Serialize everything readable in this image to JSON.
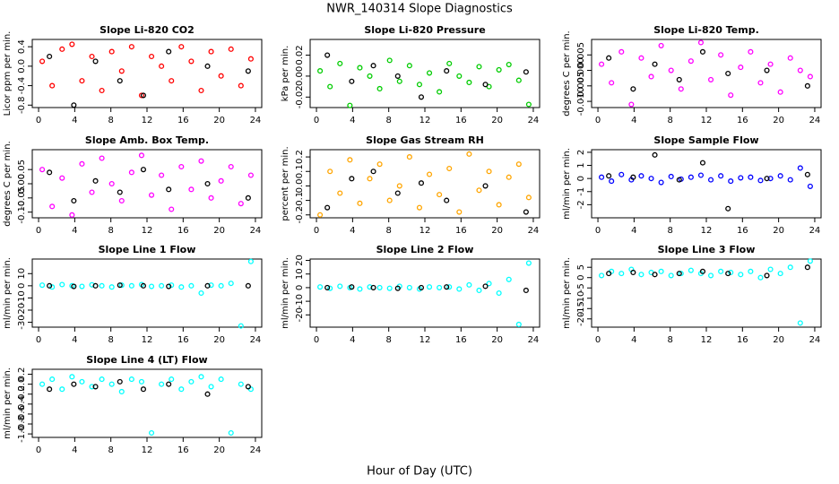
{
  "title": "NWR_140314  Slope Diagnostics",
  "x_label": "Hour of Day (UTC)",
  "chart_data": [
    {
      "type": "scatter",
      "title": "Slope Li-820 CO2",
      "y_label": "Licor ppm per min.",
      "xlim": [
        -0.7,
        24.7
      ],
      "xticks": [
        0,
        4,
        8,
        12,
        16,
        20,
        24
      ],
      "ylim": [
        -0.85,
        0.55
      ],
      "yticks": [
        -0.8,
        -0.4,
        {
          "value": 0,
          "label": "0.0"
        },
        0.4
      ],
      "series": [
        {
          "color": "#ff0000",
          "x": [
            0.4,
            1.5,
            2.6,
            3.7,
            4.8,
            5.9,
            7.0,
            8.1,
            9.2,
            10.3,
            11.4,
            12.5,
            13.6,
            14.7,
            15.8,
            16.9,
            18.0,
            19.1,
            20.2,
            21.3,
            22.4,
            23.5
          ],
          "values": [
            0.1,
            -0.4,
            0.35,
            0.45,
            -0.3,
            0.2,
            -0.5,
            0.3,
            -0.1,
            0.4,
            -0.6,
            0.2,
            0,
            -0.3,
            0.4,
            0.1,
            -0.5,
            0.3,
            -0.2,
            0.35,
            -0.4,
            0.15
          ]
        },
        {
          "color": "#000000",
          "x": [
            1.2,
            3.9,
            6.3,
            9.0,
            11.6,
            14.4,
            18.7,
            23.2
          ],
          "values": [
            0.2,
            -0.8,
            0.1,
            -0.3,
            -0.6,
            0.3,
            0,
            -0.1
          ]
        }
      ]
    },
    {
      "type": "scatter",
      "title": "Slope Li-820 Pressure",
      "y_label": "kPa per min.",
      "xlim": [
        -0.7,
        24.7
      ],
      "xticks": [
        0,
        4,
        8,
        12,
        16,
        20,
        24
      ],
      "ylim": [
        -0.03,
        0.035
      ],
      "yticks": [
        -0.02,
        {
          "value": 0,
          "label": "0.00"
        },
        0.02
      ],
      "series": [
        {
          "color": "#00cc00",
          "x": [
            0.4,
            1.5,
            2.6,
            3.7,
            4.8,
            5.9,
            7.0,
            8.1,
            9.2,
            10.3,
            11.4,
            12.5,
            13.6,
            14.7,
            15.8,
            16.9,
            18.0,
            19.1,
            20.2,
            21.3,
            22.4,
            23.5
          ],
          "values": [
            0.005,
            -0.01,
            0.012,
            -0.028,
            0.008,
            0,
            -0.012,
            0.015,
            -0.005,
            0.01,
            -0.008,
            0.003,
            -0.015,
            0.012,
            0,
            -0.006,
            0.009,
            -0.01,
            0.006,
            0.011,
            -0.004,
            -0.027
          ]
        },
        {
          "color": "#000000",
          "x": [
            1.2,
            3.9,
            6.3,
            9.0,
            11.6,
            14.4,
            18.7,
            23.2
          ],
          "values": [
            0.02,
            -0.005,
            0.01,
            0,
            -0.02,
            0.005,
            -0.008,
            0.004
          ]
        }
      ]
    },
    {
      "type": "scatter",
      "title": "Slope Li-820 Temp.",
      "y_label": "degrees C per min.",
      "xlim": [
        -0.7,
        24.7
      ],
      "xticks": [
        0,
        4,
        8,
        12,
        16,
        20,
        24
      ],
      "ylim": [
        -0.012,
        0.01
      ],
      "yticks": [
        {
          "value": -0.01,
          "label": "-0.010"
        },
        -0.005,
        {
          "value": 0,
          "label": "0.000"
        },
        0.005
      ],
      "series": [
        {
          "color": "#ff00ff",
          "x": [
            0.4,
            1.5,
            2.6,
            3.7,
            4.8,
            5.9,
            7.0,
            8.1,
            9.2,
            10.3,
            11.4,
            12.5,
            13.6,
            14.7,
            15.8,
            16.9,
            18.0,
            19.1,
            20.2,
            21.3,
            22.4,
            23.5
          ],
          "values": [
            0.002,
            -0.004,
            0.006,
            -0.011,
            0.004,
            -0.002,
            0.008,
            0,
            -0.006,
            0.003,
            0.009,
            -0.003,
            0.005,
            -0.008,
            0.001,
            0.006,
            -0.004,
            0.002,
            -0.007,
            0.004,
            0,
            -0.002
          ]
        },
        {
          "color": "#000000",
          "x": [
            1.2,
            3.9,
            6.3,
            9.0,
            11.6,
            14.4,
            18.7,
            23.2
          ],
          "values": [
            0.004,
            -0.006,
            0.002,
            -0.003,
            0.006,
            -0.001,
            0,
            -0.005
          ]
        }
      ]
    },
    {
      "type": "scatter",
      "title": "Slope Amb. Box Temp.",
      "y_label": "degrees C per min.",
      "xlim": [
        -0.7,
        24.7
      ],
      "xticks": [
        0,
        4,
        8,
        12,
        16,
        20,
        24
      ],
      "ylim": [
        -0.12,
        0.12
      ],
      "yticks": [
        {
          "value": -0.1,
          "label": "-0.10"
        },
        -0.05,
        {
          "value": 0,
          "label": "0.00"
        },
        0.05
      ],
      "series": [
        {
          "color": "#ff00ff",
          "x": [
            0.4,
            1.5,
            2.6,
            3.7,
            4.8,
            5.9,
            7.0,
            8.1,
            9.2,
            10.3,
            11.4,
            12.5,
            13.6,
            14.7,
            15.8,
            16.9,
            18.0,
            19.1,
            20.2,
            21.3,
            22.4,
            23.5
          ],
          "values": [
            0.05,
            -0.08,
            0.02,
            -0.11,
            0.07,
            -0.03,
            0.09,
            0,
            -0.06,
            0.04,
            0.1,
            -0.04,
            0.03,
            -0.09,
            0.06,
            -0.02,
            0.08,
            -0.05,
            0.01,
            0.06,
            -0.07,
            0.03
          ]
        },
        {
          "color": "#000000",
          "x": [
            1.2,
            3.9,
            6.3,
            9.0,
            11.6,
            14.4,
            18.7,
            23.2
          ],
          "values": [
            0.04,
            -0.06,
            0.01,
            -0.03,
            0.05,
            -0.02,
            0,
            -0.05
          ]
        }
      ]
    },
    {
      "type": "scatter",
      "title": "Slope Gas Stream RH",
      "y_label": "percent per min.",
      "xlim": [
        -0.7,
        24.7
      ],
      "xticks": [
        0,
        4,
        8,
        12,
        16,
        20,
        24
      ],
      "ylim": [
        -0.22,
        0.25
      ],
      "yticks": [
        -0.2,
        -0.1,
        {
          "value": 0,
          "label": "0.0"
        },
        0.1,
        0.2
      ],
      "series": [
        {
          "color": "#ffa500",
          "x": [
            0.4,
            1.5,
            2.6,
            3.7,
            4.8,
            5.9,
            7.0,
            8.1,
            9.2,
            10.3,
            11.4,
            12.5,
            13.6,
            14.7,
            15.8,
            16.9,
            18.0,
            19.1,
            20.2,
            21.3,
            22.4,
            23.5
          ],
          "values": [
            -0.2,
            0.1,
            -0.05,
            0.18,
            -0.12,
            0.05,
            0.15,
            -0.1,
            0,
            0.2,
            -0.15,
            0.08,
            -0.06,
            0.12,
            -0.18,
            0.22,
            -0.03,
            0.1,
            -0.13,
            0.06,
            0.15,
            -0.08
          ]
        },
        {
          "color": "#000000",
          "x": [
            1.2,
            3.9,
            6.3,
            9.0,
            11.6,
            14.4,
            18.7,
            23.2
          ],
          "values": [
            -0.15,
            0.05,
            0.1,
            -0.05,
            0.02,
            -0.1,
            0,
            -0.18
          ]
        }
      ]
    },
    {
      "type": "scatter",
      "title": "Slope Sample Flow",
      "y_label": "ml/min per min.",
      "xlim": [
        -0.7,
        24.7
      ],
      "xticks": [
        0,
        4,
        8,
        12,
        16,
        20,
        24
      ],
      "ylim": [
        -3,
        2.2
      ],
      "yticks": [
        -2,
        -1,
        0,
        1,
        2
      ],
      "series": [
        {
          "color": "#0000ff",
          "x": [
            0.4,
            1.5,
            2.6,
            3.7,
            4.8,
            5.9,
            7.0,
            8.1,
            9.2,
            10.3,
            11.4,
            12.5,
            13.6,
            14.7,
            15.8,
            16.9,
            18.0,
            19.1,
            20.2,
            21.3,
            22.4,
            23.5
          ],
          "values": [
            0.1,
            -0.2,
            0.3,
            -0.1,
            0.2,
            0,
            -0.3,
            0.15,
            -0.05,
            0.1,
            0.25,
            -0.1,
            0.2,
            -0.2,
            0.05,
            0.1,
            -0.15,
            0,
            0.2,
            -0.1,
            0.8,
            -0.6
          ]
        },
        {
          "color": "#000000",
          "x": [
            1.2,
            3.9,
            6.3,
            9.0,
            11.6,
            14.4,
            18.7,
            23.2
          ],
          "values": [
            0.2,
            0.1,
            1.8,
            -0.1,
            1.2,
            -2.3,
            0,
            0.3
          ]
        }
      ]
    },
    {
      "type": "scatter",
      "title": "Slope Line 1 Flow",
      "y_label": "ml/min per min.",
      "xlim": [
        -0.7,
        24.7
      ],
      "xticks": [
        0,
        4,
        8,
        12,
        16,
        20,
        24
      ],
      "ylim": [
        -34,
        22
      ],
      "yticks": [
        -30,
        -20,
        -10,
        0,
        10
      ],
      "series": [
        {
          "color": "#00ffff",
          "x": [
            0.4,
            1.5,
            2.6,
            3.7,
            4.8,
            5.9,
            7.0,
            8.1,
            9.2,
            10.3,
            11.4,
            12.5,
            13.6,
            14.7,
            15.8,
            16.9,
            18.0,
            19.1,
            20.2,
            21.3,
            22.4,
            23.5
          ],
          "values": [
            0.5,
            -1,
            1,
            0,
            -0.5,
            0.8,
            0,
            -1,
            0.5,
            0,
            1,
            -0.5,
            0,
            0.5,
            -1,
            0,
            -6,
            0.5,
            0,
            2,
            -33,
            20
          ]
        },
        {
          "color": "#000000",
          "x": [
            1.2,
            3.9,
            6.3,
            9.0,
            11.6,
            14.4,
            18.7,
            23.2
          ],
          "values": [
            0,
            -0.5,
            0,
            0.5,
            0,
            -0.5,
            0,
            0
          ]
        }
      ]
    },
    {
      "type": "scatter",
      "title": "Slope Line 2 Flow",
      "y_label": "ml/min per min.",
      "xlim": [
        -0.7,
        24.7
      ],
      "xticks": [
        0,
        4,
        8,
        12,
        16,
        20,
        24
      ],
      "ylim": [
        -29,
        21
      ],
      "yticks": [
        -20,
        -10,
        0,
        10,
        20
      ],
      "series": [
        {
          "color": "#00ffff",
          "x": [
            0.4,
            1.5,
            2.6,
            3.7,
            4.8,
            5.9,
            7.0,
            8.1,
            9.2,
            10.3,
            11.4,
            12.5,
            13.6,
            14.7,
            15.8,
            16.9,
            18.0,
            19.1,
            20.2,
            21.3,
            22.4,
            23.5
          ],
          "values": [
            0.5,
            -0.5,
            1,
            0,
            -1,
            0.5,
            0,
            -0.5,
            1,
            0,
            -1,
            0.5,
            0,
            0.5,
            -1,
            2,
            -2,
            3,
            -4,
            6,
            -27,
            18
          ]
        },
        {
          "color": "#000000",
          "x": [
            1.2,
            3.9,
            6.3,
            9.0,
            11.6,
            14.4,
            18.7,
            23.2
          ],
          "values": [
            0,
            0.5,
            0,
            -0.5,
            0,
            0.5,
            1,
            -2
          ]
        }
      ]
    },
    {
      "type": "scatter",
      "title": "Slope Line 3 Flow",
      "y_label": "ml/min per min.",
      "xlim": [
        -0.7,
        24.7
      ],
      "xticks": [
        0,
        4,
        8,
        12,
        16,
        20,
        24
      ],
      "ylim": [
        -24,
        9
      ],
      "yticks": [
        -20,
        -15,
        -10,
        -5,
        0,
        5
      ],
      "series": [
        {
          "color": "#00ffff",
          "x": [
            0.4,
            1.5,
            2.6,
            3.7,
            4.8,
            5.9,
            7.0,
            8.1,
            9.2,
            10.3,
            11.4,
            12.5,
            13.6,
            14.7,
            15.8,
            16.9,
            18.0,
            19.1,
            20.2,
            21.3,
            22.4,
            23.5
          ],
          "values": [
            1,
            3,
            2,
            4,
            1.5,
            2.5,
            3,
            1,
            2,
            3.5,
            2,
            1,
            3,
            2.5,
            1.5,
            3,
            0,
            4,
            2,
            5,
            -22,
            8
          ]
        },
        {
          "color": "#000000",
          "x": [
            1.2,
            3.9,
            6.3,
            9.0,
            11.6,
            14.4,
            18.7,
            23.2
          ],
          "values": [
            2,
            2.5,
            1.5,
            2,
            3,
            2,
            1,
            5
          ]
        }
      ]
    },
    {
      "type": "scatter",
      "title": "Slope Line 4 (LT) Flow",
      "y_label": "ml/min per min.",
      "xlim": [
        -0.7,
        24.7
      ],
      "xticks": [
        0,
        4,
        8,
        12,
        16,
        20,
        24
      ],
      "ylim": [
        -1.07,
        0.3
      ],
      "yticks": [
        {
          "value": -1,
          "label": "-1.0"
        },
        -0.8,
        -0.6,
        -0.4,
        -0.2,
        {
          "value": 0,
          "label": "0.0"
        },
        0.2
      ],
      "series": [
        {
          "color": "#00ffff",
          "x": [
            0.4,
            1.5,
            2.6,
            3.7,
            4.8,
            5.9,
            7.0,
            8.1,
            9.2,
            10.3,
            11.4,
            12.5,
            13.6,
            14.7,
            15.8,
            16.9,
            18.0,
            19.1,
            20.2,
            21.3,
            22.4,
            23.5
          ],
          "values": [
            0,
            0.1,
            -0.1,
            0.15,
            0.05,
            -0.05,
            0.1,
            0,
            -0.15,
            0.1,
            0.05,
            -0.98,
            0,
            0.1,
            -0.1,
            0.05,
            0.15,
            -0.05,
            0.1,
            -0.98,
            0,
            -0.1
          ]
        },
        {
          "color": "#000000",
          "x": [
            1.2,
            3.9,
            6.3,
            9.0,
            11.6,
            14.4,
            18.7,
            23.2
          ],
          "values": [
            -0.1,
            0,
            -0.05,
            0.05,
            -0.1,
            0,
            -0.2,
            -0.05
          ]
        }
      ]
    }
  ]
}
